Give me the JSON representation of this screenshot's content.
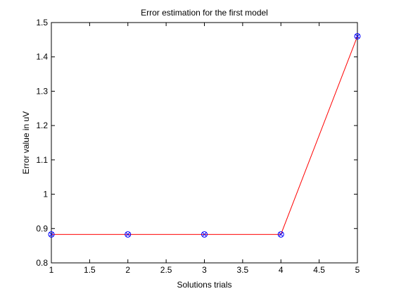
{
  "chart_data": {
    "type": "line",
    "title": "Error estimation for the first model",
    "xlabel": "Solutions trials",
    "ylabel": "Error value in uV",
    "xlim": [
      1,
      5
    ],
    "ylim": [
      0.8,
      1.5
    ],
    "x_ticks": [
      "1",
      "1.5",
      "2",
      "2.5",
      "3",
      "3.5",
      "4",
      "4.5",
      "5"
    ],
    "y_ticks": [
      "0.8",
      "0.9",
      "1",
      "1.1",
      "1.2",
      "1.3",
      "1.4",
      "1.5"
    ],
    "grid": false,
    "series": [
      {
        "x": [
          1,
          2,
          3,
          4,
          5
        ],
        "values": [
          0.883,
          0.883,
          0.883,
          0.883,
          1.46
        ],
        "line_color": "#ff0000",
        "marker_color": "#0000ff",
        "marker": "circle-x"
      }
    ]
  }
}
